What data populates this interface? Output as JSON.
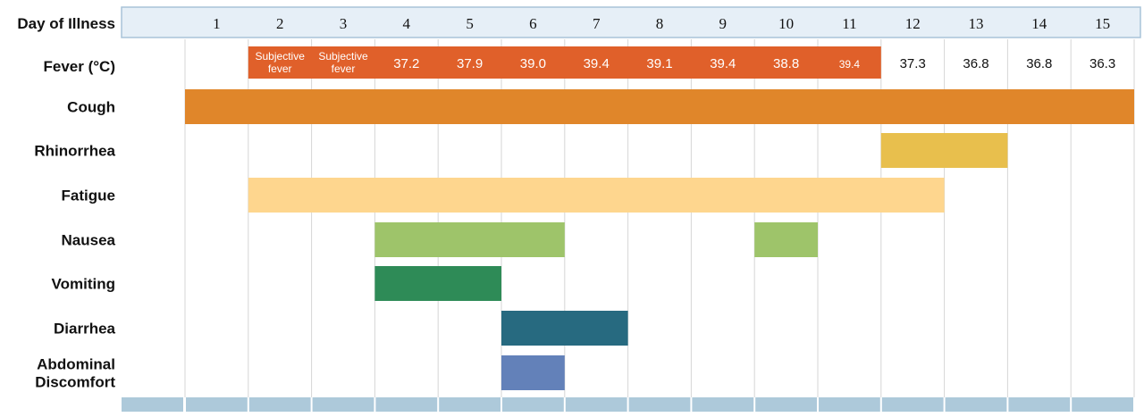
{
  "chart_data": {
    "type": "table",
    "header_label": "Day of Illness",
    "days": [
      "1",
      "2",
      "3",
      "4",
      "5",
      "6",
      "7",
      "8",
      "9",
      "10",
      "11",
      "12",
      "13",
      "14",
      "15"
    ],
    "fever": {
      "label": "Fever (°C)",
      "color": "#e0602a",
      "fever_days": [
        2,
        3,
        4,
        5,
        6,
        7,
        8,
        9,
        10,
        11
      ],
      "values": [
        {
          "day": 1,
          "text": ""
        },
        {
          "day": 2,
          "text": "Subjective fever",
          "lines": [
            "Subjective",
            "fever"
          ]
        },
        {
          "day": 3,
          "text": "Subjective fever",
          "lines": [
            "Subjective",
            "fever"
          ]
        },
        {
          "day": 4,
          "text": "37.2"
        },
        {
          "day": 5,
          "text": "37.9"
        },
        {
          "day": 6,
          "text": "39.0"
        },
        {
          "day": 7,
          "text": "39.4"
        },
        {
          "day": 8,
          "text": "39.1"
        },
        {
          "day": 9,
          "text": "39.4"
        },
        {
          "day": 10,
          "text": "38.8"
        },
        {
          "day": 11,
          "text": "39.4",
          "small": true
        },
        {
          "day": 12,
          "text": "37.3"
        },
        {
          "day": 13,
          "text": "36.8"
        },
        {
          "day": 14,
          "text": "36.8"
        },
        {
          "day": 15,
          "text": "36.3"
        }
      ]
    },
    "symptoms": [
      {
        "id": "cough",
        "label": [
          "Cough"
        ],
        "color": "#e0862a",
        "segments": [
          {
            "start": 1,
            "end": 15
          }
        ]
      },
      {
        "id": "rhinorrhea",
        "label": [
          "Rhinorrhea"
        ],
        "color": "#e8bf4d",
        "segments": [
          {
            "start": 12,
            "end": 13
          }
        ]
      },
      {
        "id": "fatigue",
        "label": [
          "Fatigue"
        ],
        "color": "#fed68e",
        "segments": [
          {
            "start": 2,
            "end": 12
          }
        ]
      },
      {
        "id": "nausea",
        "label": [
          "Nausea"
        ],
        "color": "#9ec46a",
        "segments": [
          {
            "start": 4,
            "end": 6
          },
          {
            "start": 10,
            "end": 10
          }
        ]
      },
      {
        "id": "vomiting",
        "label": [
          "Vomiting"
        ],
        "color": "#2e8b57",
        "segments": [
          {
            "start": 4,
            "end": 5
          }
        ]
      },
      {
        "id": "diarrhea",
        "label": [
          "Diarrhea"
        ],
        "color": "#276a80",
        "segments": [
          {
            "start": 6,
            "end": 7
          }
        ]
      },
      {
        "id": "abdominal-discomfort",
        "label": [
          "Abdominal",
          "Discomfort"
        ],
        "color": "#6381b9",
        "segments": [
          {
            "start": 6,
            "end": 6
          }
        ]
      }
    ],
    "colors": {
      "header_bg": "#e6eff7",
      "header_border": "#a9c4d8",
      "footer_bg": "#adc9da",
      "grid": "#d6d6d6"
    }
  }
}
